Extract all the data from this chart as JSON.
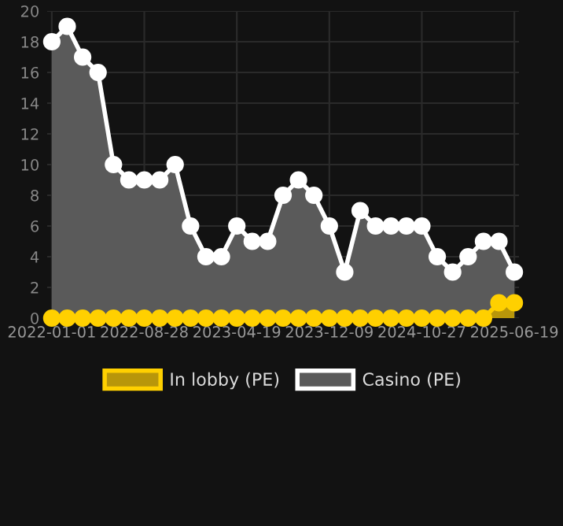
{
  "chart_data": {
    "type": "area",
    "categories": [
      "2022-01-01",
      null,
      null,
      null,
      null,
      null,
      "2022-08-28",
      null,
      null,
      null,
      null,
      null,
      "2023-04-19",
      null,
      null,
      null,
      null,
      null,
      "2023-12-09",
      null,
      null,
      null,
      null,
      null,
      "2024-10-27",
      null,
      null,
      null,
      null,
      null,
      "2025-06-19"
    ],
    "series": [
      {
        "name": "In lobby (PE)",
        "color": "#ffd000",
        "values": [
          0,
          0,
          0,
          0,
          0,
          0,
          0,
          0,
          0,
          0,
          0,
          0,
          0,
          0,
          0,
          0,
          0,
          0,
          0,
          0,
          0,
          0,
          0,
          0,
          0,
          0,
          0,
          0,
          0,
          1,
          1
        ]
      },
      {
        "name": "Casino (PE)",
        "color": "#ffffff",
        "values": [
          18,
          19,
          17,
          16,
          10,
          9,
          9,
          9,
          10,
          6,
          4,
          4,
          6,
          5,
          5,
          8,
          9,
          8,
          6,
          3,
          7,
          6,
          6,
          6,
          6,
          4,
          3,
          4,
          5,
          5,
          3
        ]
      }
    ],
    "ylim": [
      0,
      20
    ],
    "yticks": [
      0,
      2,
      4,
      6,
      8,
      10,
      12,
      14,
      16,
      18,
      20
    ],
    "grid": true,
    "legend": "bottom",
    "marker": "circle",
    "line_style": "solid"
  }
}
